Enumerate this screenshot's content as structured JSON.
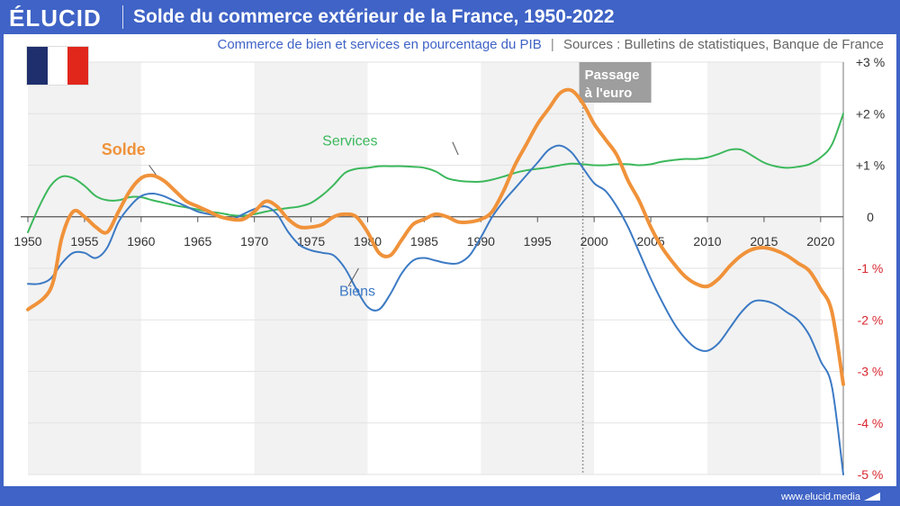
{
  "header": {
    "brand": "ÉLUCID",
    "title": "Solde du commerce extérieur de la France, 1950-2022"
  },
  "subtitle": {
    "main": "Commerce de bien et services en pourcentage du PIB",
    "separator": "|",
    "sources": "Sources : Bulletins de statistiques, Banque de France"
  },
  "flag": {
    "colors": [
      "#1f2f6e",
      "#ffffff",
      "#e1261c"
    ],
    "icon": "french-flag-icon"
  },
  "annotation": {
    "line1": "Passage",
    "line2": "à l'euro",
    "year": 1999
  },
  "footer": {
    "url": "www.elucid.media",
    "icon": "elucid-logo-icon"
  },
  "colors": {
    "solde": "#f0923a",
    "biens": "#3c7ac4",
    "services": "#3cb85c",
    "negative_tick": "#d8262e",
    "shade": "#f2f2f2"
  },
  "chart_data": {
    "type": "line",
    "title": "Solde du commerce extérieur de la France, 1950-2022",
    "xlabel": "",
    "ylabel": "",
    "xlim": [
      1950,
      2022
    ],
    "ylim": [
      -5,
      3
    ],
    "x_ticks": [
      1950,
      1955,
      1960,
      1965,
      1970,
      1975,
      1980,
      1985,
      1990,
      1995,
      2000,
      2005,
      2010,
      2015,
      2020
    ],
    "y_ticks": [
      {
        "value": 3,
        "label": "+3 %"
      },
      {
        "value": 2,
        "label": "+2 %"
      },
      {
        "value": 1,
        "label": "+1 %"
      },
      {
        "value": 0,
        "label": "0"
      },
      {
        "value": -1,
        "label": "-1 %"
      },
      {
        "value": -2,
        "label": "-2 %"
      },
      {
        "value": -3,
        "label": "-3 %"
      },
      {
        "value": -4,
        "label": "-4 %"
      },
      {
        "value": -5,
        "label": "-5 %"
      }
    ],
    "series": [
      {
        "name": "Solde",
        "key": "solde",
        "label_pos": {
          "x": 1956.5,
          "y": 1.2
        },
        "points": [
          [
            1950,
            -1.8
          ],
          [
            1952,
            -1.4
          ],
          [
            1953,
            -0.4
          ],
          [
            1954,
            0.1
          ],
          [
            1955,
            0.0
          ],
          [
            1956,
            -0.2
          ],
          [
            1957,
            -0.3
          ],
          [
            1958,
            0.1
          ],
          [
            1959,
            0.5
          ],
          [
            1960,
            0.75
          ],
          [
            1961,
            0.8
          ],
          [
            1962,
            0.7
          ],
          [
            1963,
            0.5
          ],
          [
            1964,
            0.3
          ],
          [
            1965,
            0.2
          ],
          [
            1966,
            0.1
          ],
          [
            1967,
            0.0
          ],
          [
            1968,
            -0.05
          ],
          [
            1969,
            -0.05
          ],
          [
            1970,
            0.1
          ],
          [
            1971,
            0.3
          ],
          [
            1972,
            0.2
          ],
          [
            1973,
            -0.05
          ],
          [
            1974,
            -0.2
          ],
          [
            1975,
            -0.2
          ],
          [
            1976,
            -0.15
          ],
          [
            1977,
            0.0
          ],
          [
            1978,
            0.05
          ],
          [
            1979,
            0.0
          ],
          [
            1980,
            -0.3
          ],
          [
            1981,
            -0.7
          ],
          [
            1982,
            -0.75
          ],
          [
            1983,
            -0.45
          ],
          [
            1984,
            -0.15
          ],
          [
            1985,
            -0.05
          ],
          [
            1986,
            0.05
          ],
          [
            1987,
            0.0
          ],
          [
            1988,
            -0.1
          ],
          [
            1989,
            -0.1
          ],
          [
            1990,
            -0.05
          ],
          [
            1991,
            0.1
          ],
          [
            1992,
            0.5
          ],
          [
            1993,
            1.0
          ],
          [
            1994,
            1.4
          ],
          [
            1995,
            1.8
          ],
          [
            1996,
            2.1
          ],
          [
            1997,
            2.4
          ],
          [
            1998,
            2.45
          ],
          [
            1999,
            2.2
          ],
          [
            2000,
            1.8
          ],
          [
            2001,
            1.5
          ],
          [
            2002,
            1.2
          ],
          [
            2003,
            0.7
          ],
          [
            2004,
            0.3
          ],
          [
            2005,
            -0.2
          ],
          [
            2006,
            -0.6
          ],
          [
            2007,
            -0.9
          ],
          [
            2008,
            -1.15
          ],
          [
            2009,
            -1.3
          ],
          [
            2010,
            -1.35
          ],
          [
            2011,
            -1.2
          ],
          [
            2012,
            -0.95
          ],
          [
            2013,
            -0.75
          ],
          [
            2014,
            -0.63
          ],
          [
            2015,
            -0.6
          ],
          [
            2016,
            -0.65
          ],
          [
            2017,
            -0.75
          ],
          [
            2018,
            -0.9
          ],
          [
            2019,
            -1.05
          ],
          [
            2020,
            -1.4
          ],
          [
            2021,
            -1.85
          ],
          [
            2022,
            -3.25
          ]
        ]
      },
      {
        "name": "Biens",
        "key": "biens",
        "label_pos": {
          "x": 1977.5,
          "y": -1.53
        },
        "points": [
          [
            1950,
            -1.3
          ],
          [
            1951,
            -1.3
          ],
          [
            1952,
            -1.2
          ],
          [
            1953,
            -0.9
          ],
          [
            1954,
            -0.7
          ],
          [
            1955,
            -0.7
          ],
          [
            1956,
            -0.8
          ],
          [
            1957,
            -0.6
          ],
          [
            1958,
            -0.1
          ],
          [
            1959,
            0.2
          ],
          [
            1960,
            0.4
          ],
          [
            1961,
            0.45
          ],
          [
            1962,
            0.4
          ],
          [
            1963,
            0.3
          ],
          [
            1964,
            0.2
          ],
          [
            1965,
            0.1
          ],
          [
            1966,
            0.05
          ],
          [
            1967,
            0.0
          ],
          [
            1968,
            -0.05
          ],
          [
            1969,
            0.05
          ],
          [
            1970,
            0.15
          ],
          [
            1971,
            0.2
          ],
          [
            1972,
            0.05
          ],
          [
            1973,
            -0.3
          ],
          [
            1974,
            -0.55
          ],
          [
            1975,
            -0.65
          ],
          [
            1976,
            -0.7
          ],
          [
            1977,
            -0.75
          ],
          [
            1978,
            -1.0
          ],
          [
            1979,
            -1.4
          ],
          [
            1980,
            -1.75
          ],
          [
            1981,
            -1.8
          ],
          [
            1982,
            -1.5
          ],
          [
            1983,
            -1.1
          ],
          [
            1984,
            -0.85
          ],
          [
            1985,
            -0.8
          ],
          [
            1986,
            -0.85
          ],
          [
            1987,
            -0.9
          ],
          [
            1988,
            -0.9
          ],
          [
            1989,
            -0.75
          ],
          [
            1990,
            -0.4
          ],
          [
            1991,
            0.0
          ],
          [
            1992,
            0.3
          ],
          [
            1993,
            0.55
          ],
          [
            1994,
            0.8
          ],
          [
            1995,
            1.05
          ],
          [
            1996,
            1.3
          ],
          [
            1997,
            1.38
          ],
          [
            1998,
            1.25
          ],
          [
            1999,
            0.95
          ],
          [
            2000,
            0.65
          ],
          [
            2001,
            0.5
          ],
          [
            2002,
            0.2
          ],
          [
            2003,
            -0.2
          ],
          [
            2004,
            -0.7
          ],
          [
            2005,
            -1.2
          ],
          [
            2006,
            -1.65
          ],
          [
            2007,
            -2.05
          ],
          [
            2008,
            -2.35
          ],
          [
            2009,
            -2.55
          ],
          [
            2010,
            -2.6
          ],
          [
            2011,
            -2.45
          ],
          [
            2012,
            -2.15
          ],
          [
            2013,
            -1.85
          ],
          [
            2014,
            -1.65
          ],
          [
            2015,
            -1.63
          ],
          [
            2016,
            -1.7
          ],
          [
            2017,
            -1.85
          ],
          [
            2018,
            -2.0
          ],
          [
            2019,
            -2.3
          ],
          [
            2020,
            -2.8
          ],
          [
            2021,
            -3.3
          ],
          [
            2022,
            -5.0
          ]
        ]
      },
      {
        "name": "Services",
        "key": "services",
        "label_pos": {
          "x": 1976,
          "y": 1.38
        },
        "points": [
          [
            1950,
            -0.3
          ],
          [
            1951,
            0.2
          ],
          [
            1952,
            0.6
          ],
          [
            1953,
            0.78
          ],
          [
            1954,
            0.75
          ],
          [
            1955,
            0.6
          ],
          [
            1956,
            0.4
          ],
          [
            1957,
            0.32
          ],
          [
            1958,
            0.32
          ],
          [
            1959,
            0.38
          ],
          [
            1960,
            0.38
          ],
          [
            1961,
            0.32
          ],
          [
            1962,
            0.27
          ],
          [
            1963,
            0.22
          ],
          [
            1964,
            0.18
          ],
          [
            1965,
            0.14
          ],
          [
            1966,
            0.1
          ],
          [
            1967,
            0.07
          ],
          [
            1968,
            0.03
          ],
          [
            1969,
            0.02
          ],
          [
            1970,
            0.05
          ],
          [
            1971,
            0.1
          ],
          [
            1972,
            0.14
          ],
          [
            1973,
            0.17
          ],
          [
            1974,
            0.2
          ],
          [
            1975,
            0.27
          ],
          [
            1976,
            0.42
          ],
          [
            1977,
            0.62
          ],
          [
            1978,
            0.85
          ],
          [
            1979,
            0.93
          ],
          [
            1980,
            0.95
          ],
          [
            1981,
            0.98
          ],
          [
            1982,
            0.98
          ],
          [
            1983,
            0.98
          ],
          [
            1984,
            0.97
          ],
          [
            1985,
            0.95
          ],
          [
            1986,
            0.88
          ],
          [
            1987,
            0.75
          ],
          [
            1988,
            0.7
          ],
          [
            1989,
            0.68
          ],
          [
            1990,
            0.68
          ],
          [
            1991,
            0.72
          ],
          [
            1992,
            0.78
          ],
          [
            1993,
            0.85
          ],
          [
            1994,
            0.9
          ],
          [
            1995,
            0.93
          ],
          [
            1996,
            0.96
          ],
          [
            1997,
            1.0
          ],
          [
            1998,
            1.03
          ],
          [
            1999,
            1.02
          ],
          [
            2000,
            1.0
          ],
          [
            2001,
            1.0
          ],
          [
            2002,
            1.02
          ],
          [
            2003,
            1.02
          ],
          [
            2004,
            1.0
          ],
          [
            2005,
            1.02
          ],
          [
            2006,
            1.07
          ],
          [
            2007,
            1.1
          ],
          [
            2008,
            1.12
          ],
          [
            2009,
            1.12
          ],
          [
            2010,
            1.15
          ],
          [
            2011,
            1.22
          ],
          [
            2012,
            1.3
          ],
          [
            2013,
            1.3
          ],
          [
            2014,
            1.18
          ],
          [
            2015,
            1.05
          ],
          [
            2016,
            0.98
          ],
          [
            2017,
            0.95
          ],
          [
            2018,
            0.97
          ],
          [
            2019,
            1.02
          ],
          [
            2020,
            1.15
          ],
          [
            2021,
            1.4
          ],
          [
            2022,
            2.0
          ]
        ]
      }
    ]
  }
}
